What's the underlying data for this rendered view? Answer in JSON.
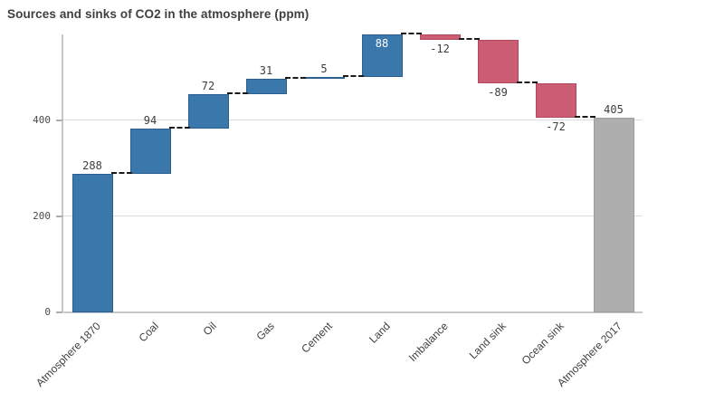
{
  "title": "Sources and sinks of CO2 in the atmosphere (ppm)",
  "chart_data": {
    "type": "bar",
    "subtype": "waterfall",
    "title": "Sources and sinks of CO2 in the atmosphere (ppm)",
    "categories": [
      "Atmosphere 1870",
      "Coal",
      "Oil",
      "Gas",
      "Cement",
      "Land",
      "Imbalance",
      "Land sink",
      "Ocean sink",
      "Atmosphere 2017"
    ],
    "values": [
      288,
      94,
      72,
      31,
      5,
      88,
      -12,
      -89,
      -72,
      405
    ],
    "labels": [
      "288",
      "94",
      "72",
      "31",
      "5",
      "88",
      "-12",
      "-89",
      "-72",
      "405"
    ],
    "bar_types": [
      "absolute",
      "increase",
      "increase",
      "increase",
      "increase",
      "increase",
      "decrease",
      "decrease",
      "decrease",
      "total"
    ],
    "cumulative_levels": [
      288,
      382,
      454,
      485,
      490,
      578,
      566,
      477,
      405,
      405
    ],
    "xlabel": "",
    "ylabel": "",
    "yticks": [
      0,
      200,
      400
    ],
    "ylim": [
      0,
      578
    ],
    "grid": true,
    "legend": false,
    "connector_style": "dashed",
    "colors": {
      "increase": "#3a77ab",
      "decrease": "#cb5c72",
      "total": "#aeaeae",
      "connector": "#1a1a1a",
      "grid": "#dcdcdc",
      "axis": "#c8c8c8",
      "value_text": "#3d3d3d",
      "inside_value_text": "#ffffff"
    }
  }
}
